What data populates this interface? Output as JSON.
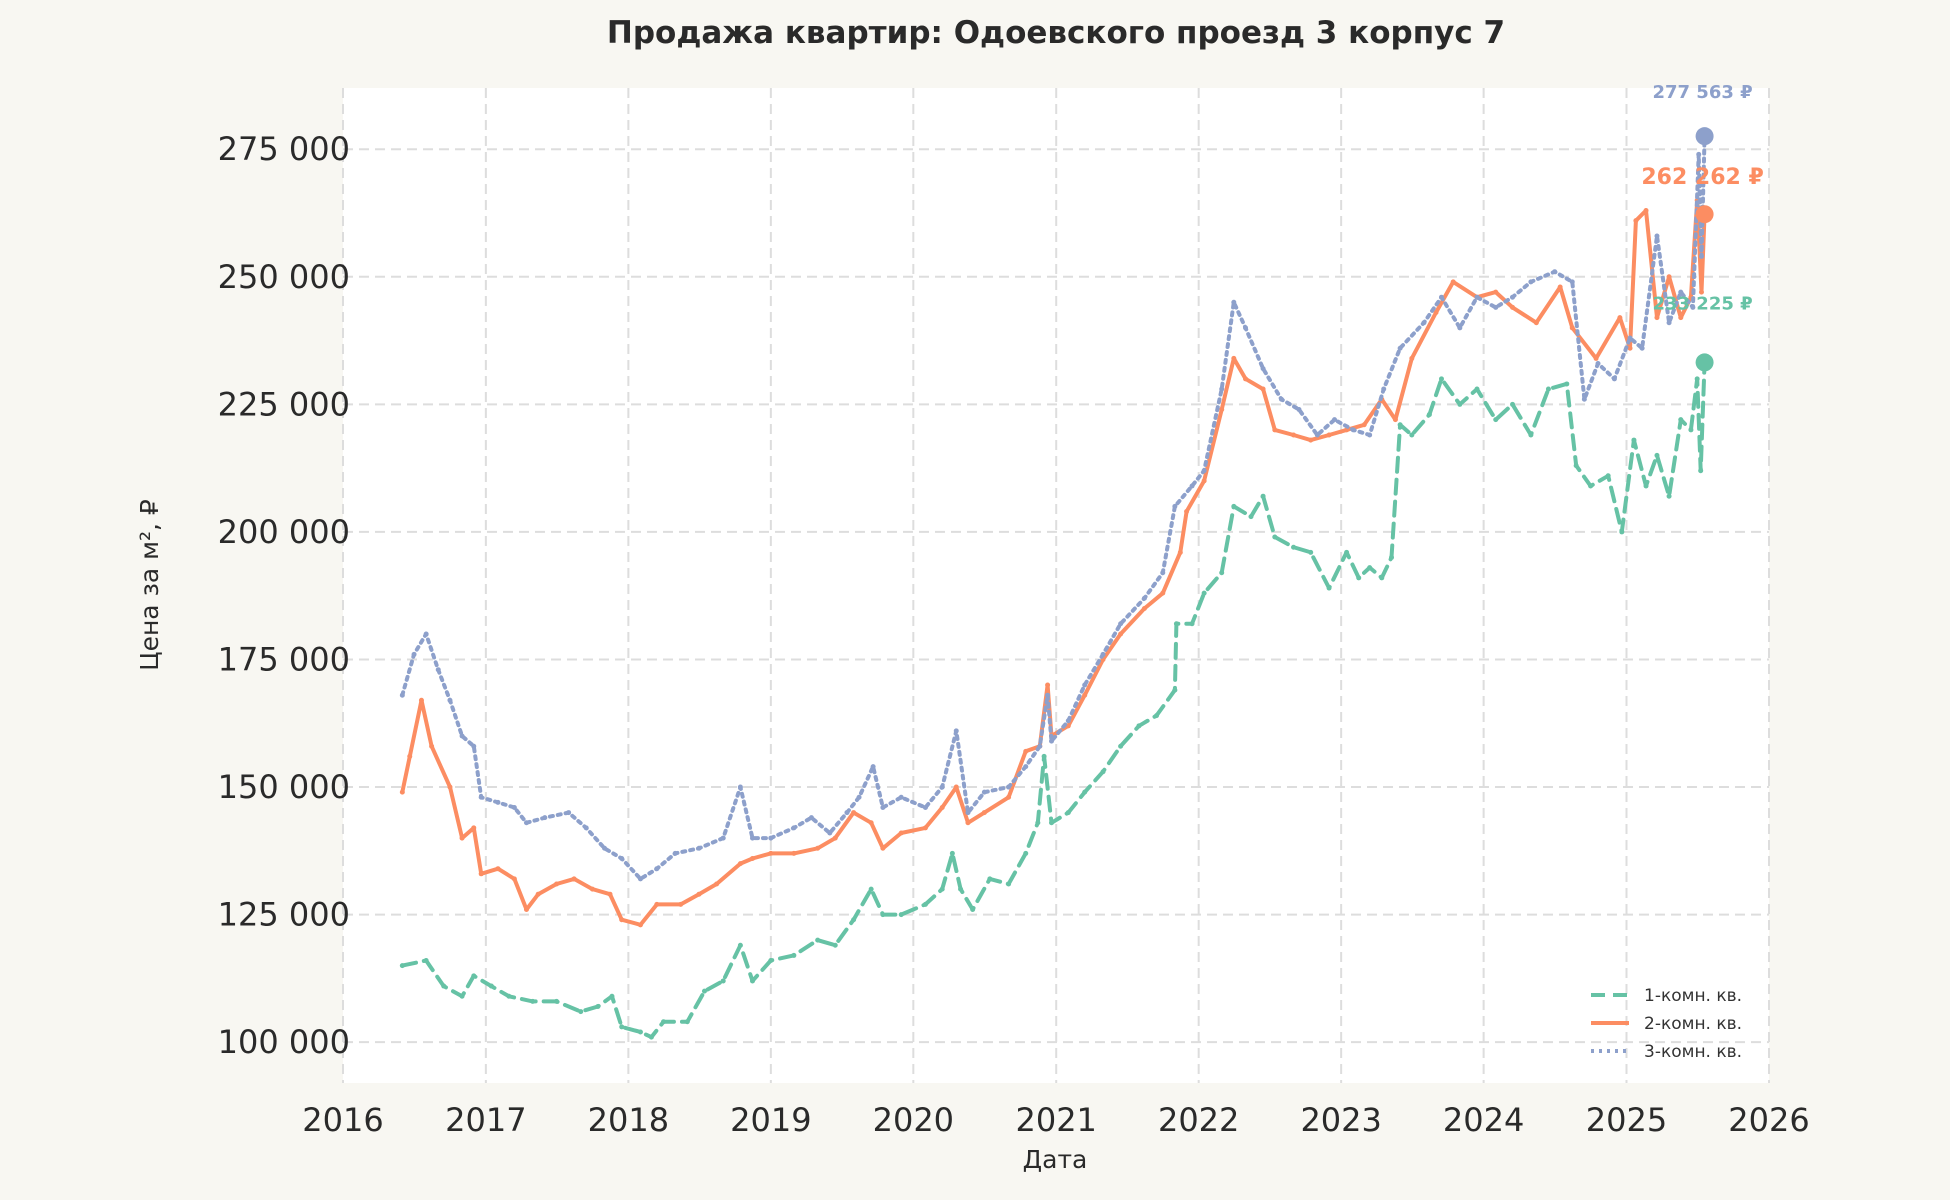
{
  "chart_data": {
    "type": "line",
    "title": "Продажа квартир: Одоевского проезд 3 корпус 7",
    "xlabel": "Дата",
    "ylabel": "Цена за м², ₽",
    "xlim": [
      "2016-01-01",
      "2026-01-01"
    ],
    "ylim": [
      92000,
      287000
    ],
    "x_ticks": [
      "2016",
      "2017",
      "2018",
      "2019",
      "2020",
      "2021",
      "2022",
      "2023",
      "2024",
      "2025",
      "2026"
    ],
    "y_ticks": [
      100000,
      125000,
      150000,
      175000,
      200000,
      225000,
      250000,
      275000
    ],
    "y_tick_labels": [
      "100 000",
      "125 000",
      "150 000",
      "175 000",
      "200 000",
      "225 000",
      "250 000",
      "275 000"
    ],
    "grid": true,
    "legend_position": "bottom-right",
    "series": [
      {
        "name": "1-комн. кв.",
        "color": "#66c2a5",
        "style": "dashed",
        "marker": "diamond",
        "final_label": "233 225 ₽",
        "points": [
          [
            "2016-06-01",
            115000
          ],
          [
            "2016-08-01",
            116000
          ],
          [
            "2016-09-15",
            111000
          ],
          [
            "2016-11-01",
            109000
          ],
          [
            "2016-12-01",
            113000
          ],
          [
            "2017-01-15",
            111000
          ],
          [
            "2017-03-01",
            109000
          ],
          [
            "2017-05-01",
            108000
          ],
          [
            "2017-07-01",
            108000
          ],
          [
            "2017-09-01",
            106000
          ],
          [
            "2017-10-15",
            107000
          ],
          [
            "2017-11-20",
            109000
          ],
          [
            "2017-12-15",
            103000
          ],
          [
            "2018-02-01",
            102000
          ],
          [
            "2018-03-01",
            101000
          ],
          [
            "2018-04-01",
            104000
          ],
          [
            "2018-06-01",
            104000
          ],
          [
            "2018-07-15",
            110000
          ],
          [
            "2018-09-01",
            112000
          ],
          [
            "2018-10-15",
            119000
          ],
          [
            "2018-11-15",
            112000
          ],
          [
            "2019-01-01",
            116000
          ],
          [
            "2019-03-01",
            117000
          ],
          [
            "2019-05-01",
            120000
          ],
          [
            "2019-06-15",
            119000
          ],
          [
            "2019-08-01",
            124000
          ],
          [
            "2019-09-15",
            130000
          ],
          [
            "2019-10-15",
            125000
          ],
          [
            "2019-12-01",
            125000
          ],
          [
            "2020-02-01",
            127000
          ],
          [
            "2020-03-15",
            130000
          ],
          [
            "2020-04-10",
            137000
          ],
          [
            "2020-05-01",
            130000
          ],
          [
            "2020-06-01",
            126000
          ],
          [
            "2020-07-15",
            132000
          ],
          [
            "2020-09-01",
            131000
          ],
          [
            "2020-10-15",
            137000
          ],
          [
            "2020-11-15",
            143000
          ],
          [
            "2020-12-01",
            156000
          ],
          [
            "2020-12-20",
            143000
          ],
          [
            "2021-02-01",
            145000
          ],
          [
            "2021-03-15",
            149000
          ],
          [
            "2021-05-01",
            153000
          ],
          [
            "2021-06-15",
            158000
          ],
          [
            "2021-08-01",
            162000
          ],
          [
            "2021-09-15",
            164000
          ],
          [
            "2021-11-01",
            169000
          ],
          [
            "2021-11-05",
            182000
          ],
          [
            "2021-12-15",
            182000
          ],
          [
            "2022-01-15",
            188000
          ],
          [
            "2022-03-01",
            192000
          ],
          [
            "2022-04-01",
            205000
          ],
          [
            "2022-05-15",
            203000
          ],
          [
            "2022-06-15",
            207000
          ],
          [
            "2022-07-15",
            199000
          ],
          [
            "2022-09-01",
            197000
          ],
          [
            "2022-10-15",
            196000
          ],
          [
            "2022-12-01",
            189000
          ],
          [
            "2023-01-15",
            196000
          ],
          [
            "2023-02-15",
            191000
          ],
          [
            "2023-03-15",
            193000
          ],
          [
            "2023-04-15",
            191000
          ],
          [
            "2023-05-10",
            195000
          ],
          [
            "2023-06-01",
            221000
          ],
          [
            "2023-07-01",
            219000
          ],
          [
            "2023-08-15",
            223000
          ],
          [
            "2023-09-15",
            230000
          ],
          [
            "2023-11-01",
            225000
          ],
          [
            "2023-12-15",
            228000
          ],
          [
            "2024-02-01",
            222000
          ],
          [
            "2024-03-15",
            225000
          ],
          [
            "2024-05-01",
            219000
          ],
          [
            "2024-06-15",
            228000
          ],
          [
            "2024-08-01",
            229000
          ],
          [
            "2024-08-25",
            213000
          ],
          [
            "2024-10-01",
            209000
          ],
          [
            "2024-11-15",
            211000
          ],
          [
            "2024-12-20",
            200000
          ],
          [
            "2025-01-20",
            218000
          ],
          [
            "2025-02-20",
            209000
          ],
          [
            "2025-03-20",
            215000
          ],
          [
            "2025-04-20",
            207000
          ],
          [
            "2025-05-20",
            222000
          ],
          [
            "2025-06-15",
            220000
          ],
          [
            "2025-07-01",
            230000
          ],
          [
            "2025-07-10",
            212000
          ],
          [
            "2025-07-20",
            233225
          ]
        ]
      },
      {
        "name": "2-комн. кв.",
        "color": "#fc8d62",
        "style": "solid",
        "marker": "triangle",
        "final_label": "262 262 ₽",
        "points": [
          [
            "2016-06-01",
            149000
          ],
          [
            "2016-06-20",
            156000
          ],
          [
            "2016-07-20",
            167000
          ],
          [
            "2016-08-15",
            158000
          ],
          [
            "2016-10-01",
            150000
          ],
          [
            "2016-11-01",
            140000
          ],
          [
            "2016-12-01",
            142000
          ],
          [
            "2016-12-20",
            133000
          ],
          [
            "2017-02-01",
            134000
          ],
          [
            "2017-03-15",
            132000
          ],
          [
            "2017-04-15",
            126000
          ],
          [
            "2017-05-15",
            129000
          ],
          [
            "2017-07-01",
            131000
          ],
          [
            "2017-08-15",
            132000
          ],
          [
            "2017-10-01",
            130000
          ],
          [
            "2017-11-15",
            129000
          ],
          [
            "2017-12-15",
            124000
          ],
          [
            "2018-02-01",
            123000
          ],
          [
            "2018-03-15",
            127000
          ],
          [
            "2018-05-15",
            127000
          ],
          [
            "2018-07-01",
            129000
          ],
          [
            "2018-08-15",
            131000
          ],
          [
            "2018-10-15",
            135000
          ],
          [
            "2018-11-15",
            136000
          ],
          [
            "2019-01-01",
            137000
          ],
          [
            "2019-03-01",
            137000
          ],
          [
            "2019-05-01",
            138000
          ],
          [
            "2019-06-15",
            140000
          ],
          [
            "2019-08-01",
            145000
          ],
          [
            "2019-09-15",
            143000
          ],
          [
            "2019-10-15",
            138000
          ],
          [
            "2019-12-01",
            141000
          ],
          [
            "2020-02-01",
            142000
          ],
          [
            "2020-03-15",
            146000
          ],
          [
            "2020-04-20",
            150000
          ],
          [
            "2020-05-20",
            143000
          ],
          [
            "2020-07-01",
            145000
          ],
          [
            "2020-09-01",
            148000
          ],
          [
            "2020-10-15",
            157000
          ],
          [
            "2020-11-20",
            158000
          ],
          [
            "2020-12-10",
            170000
          ],
          [
            "2020-12-20",
            160000
          ],
          [
            "2021-02-01",
            162000
          ],
          [
            "2021-03-15",
            168000
          ],
          [
            "2021-05-01",
            175000
          ],
          [
            "2021-06-15",
            180000
          ],
          [
            "2021-08-15",
            185000
          ],
          [
            "2021-10-01",
            188000
          ],
          [
            "2021-11-15",
            196000
          ],
          [
            "2021-12-01",
            204000
          ],
          [
            "2022-01-15",
            210000
          ],
          [
            "2022-03-01",
            224000
          ],
          [
            "2022-04-01",
            234000
          ],
          [
            "2022-05-01",
            230000
          ],
          [
            "2022-06-15",
            228000
          ],
          [
            "2022-07-15",
            220000
          ],
          [
            "2022-09-01",
            219000
          ],
          [
            "2022-10-15",
            218000
          ],
          [
            "2022-12-01",
            219000
          ],
          [
            "2023-01-15",
            220000
          ],
          [
            "2023-03-01",
            221000
          ],
          [
            "2023-04-15",
            226000
          ],
          [
            "2023-05-20",
            222000
          ],
          [
            "2023-07-01",
            234000
          ],
          [
            "2023-09-01",
            243000
          ],
          [
            "2023-10-15",
            249000
          ],
          [
            "2023-12-15",
            246000
          ],
          [
            "2024-02-01",
            247000
          ],
          [
            "2024-03-15",
            244000
          ],
          [
            "2024-05-15",
            241000
          ],
          [
            "2024-07-15",
            248000
          ],
          [
            "2024-08-15",
            240000
          ],
          [
            "2024-10-15",
            234000
          ],
          [
            "2024-12-15",
            242000
          ],
          [
            "2025-01-10",
            236000
          ],
          [
            "2025-01-25",
            261000
          ],
          [
            "2025-02-20",
            263000
          ],
          [
            "2025-03-20",
            242000
          ],
          [
            "2025-04-20",
            250000
          ],
          [
            "2025-05-20",
            242000
          ],
          [
            "2025-06-15",
            246000
          ],
          [
            "2025-07-01",
            265000
          ],
          [
            "2025-07-12",
            247000
          ],
          [
            "2025-07-20",
            262262
          ]
        ]
      },
      {
        "name": "3-комн. кв.",
        "color": "#8da0cb",
        "style": "dotted",
        "marker": "triangle-down",
        "final_label": "277 563 ₽",
        "points": [
          [
            "2016-06-01",
            168000
          ],
          [
            "2016-07-01",
            176000
          ],
          [
            "2016-08-01",
            180000
          ],
          [
            "2016-09-01",
            173000
          ],
          [
            "2016-10-01",
            167000
          ],
          [
            "2016-11-01",
            160000
          ],
          [
            "2016-12-01",
            158000
          ],
          [
            "2016-12-20",
            148000
          ],
          [
            "2017-02-01",
            147000
          ],
          [
            "2017-03-15",
            146000
          ],
          [
            "2017-04-15",
            143000
          ],
          [
            "2017-06-01",
            144000
          ],
          [
            "2017-08-01",
            145000
          ],
          [
            "2017-09-15",
            142000
          ],
          [
            "2017-11-01",
            138000
          ],
          [
            "2017-12-15",
            136000
          ],
          [
            "2018-02-01",
            132000
          ],
          [
            "2018-03-15",
            134000
          ],
          [
            "2018-05-01",
            137000
          ],
          [
            "2018-07-01",
            138000
          ],
          [
            "2018-09-01",
            140000
          ],
          [
            "2018-10-15",
            150000
          ],
          [
            "2018-11-15",
            140000
          ],
          [
            "2019-01-01",
            140000
          ],
          [
            "2019-03-01",
            142000
          ],
          [
            "2019-04-15",
            144000
          ],
          [
            "2019-06-01",
            141000
          ],
          [
            "2019-07-15",
            145000
          ],
          [
            "2019-08-15",
            148000
          ],
          [
            "2019-09-20",
            154000
          ],
          [
            "2019-10-15",
            146000
          ],
          [
            "2019-12-01",
            148000
          ],
          [
            "2020-02-01",
            146000
          ],
          [
            "2020-03-15",
            150000
          ],
          [
            "2020-04-20",
            161000
          ],
          [
            "2020-05-20",
            145000
          ],
          [
            "2020-07-01",
            149000
          ],
          [
            "2020-09-01",
            150000
          ],
          [
            "2020-10-15",
            154000
          ],
          [
            "2020-11-20",
            158000
          ],
          [
            "2020-12-10",
            168000
          ],
          [
            "2020-12-20",
            159000
          ],
          [
            "2021-02-01",
            163000
          ],
          [
            "2021-03-15",
            170000
          ],
          [
            "2021-05-01",
            176000
          ],
          [
            "2021-06-15",
            182000
          ],
          [
            "2021-08-15",
            187000
          ],
          [
            "2021-10-01",
            192000
          ],
          [
            "2021-11-01",
            205000
          ],
          [
            "2021-12-15",
            209000
          ],
          [
            "2022-01-15",
            212000
          ],
          [
            "2022-03-01",
            228000
          ],
          [
            "2022-04-01",
            245000
          ],
          [
            "2022-05-01",
            240000
          ],
          [
            "2022-06-15",
            232000
          ],
          [
            "2022-08-01",
            226000
          ],
          [
            "2022-09-15",
            224000
          ],
          [
            "2022-11-01",
            219000
          ],
          [
            "2022-12-15",
            222000
          ],
          [
            "2023-02-01",
            220000
          ],
          [
            "2023-03-15",
            219000
          ],
          [
            "2023-04-20",
            228000
          ],
          [
            "2023-06-01",
            236000
          ],
          [
            "2023-08-01",
            241000
          ],
          [
            "2023-09-15",
            246000
          ],
          [
            "2023-11-01",
            240000
          ],
          [
            "2023-12-15",
            246000
          ],
          [
            "2024-02-01",
            244000
          ],
          [
            "2024-03-15",
            246000
          ],
          [
            "2024-05-01",
            249000
          ],
          [
            "2024-07-01",
            251000
          ],
          [
            "2024-08-15",
            249000
          ],
          [
            "2024-09-15",
            226000
          ],
          [
            "2024-10-20",
            233000
          ],
          [
            "2024-12-01",
            230000
          ],
          [
            "2025-01-10",
            238000
          ],
          [
            "2025-02-10",
            236000
          ],
          [
            "2025-03-20",
            258000
          ],
          [
            "2025-04-20",
            241000
          ],
          [
            "2025-05-20",
            247000
          ],
          [
            "2025-06-20",
            244000
          ],
          [
            "2025-07-05",
            274000
          ],
          [
            "2025-07-12",
            254000
          ],
          [
            "2025-07-20",
            277563
          ]
        ]
      }
    ]
  }
}
